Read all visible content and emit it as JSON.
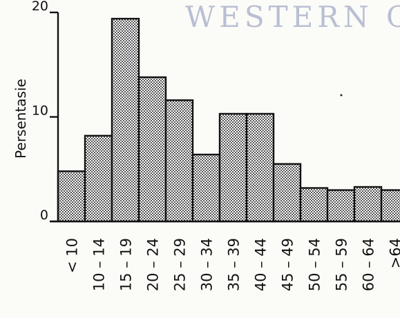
{
  "watermark_text": "WESTERN C",
  "chart_data": {
    "type": "bar",
    "title": "",
    "xlabel": "",
    "ylabel": "Persentasie",
    "ylim": [
      0,
      20
    ],
    "yticks": [
      "0",
      "10",
      "20"
    ],
    "grid": false,
    "legend": "none",
    "bar_fill": "stippled",
    "categories": [
      "< 10",
      "10 – 14",
      "15 – 19",
      "20 – 24",
      "25 – 29",
      "30 – 34",
      "35 – 39",
      "40 – 44",
      "45 – 49",
      "50 – 54",
      "55 – 59",
      "60 – 64",
      ">64"
    ],
    "values": [
      4.8,
      8.2,
      19.4,
      13.8,
      11.6,
      6.4,
      10.3,
      10.3,
      5.5,
      3.2,
      3.0,
      3.3,
      3.0
    ]
  }
}
